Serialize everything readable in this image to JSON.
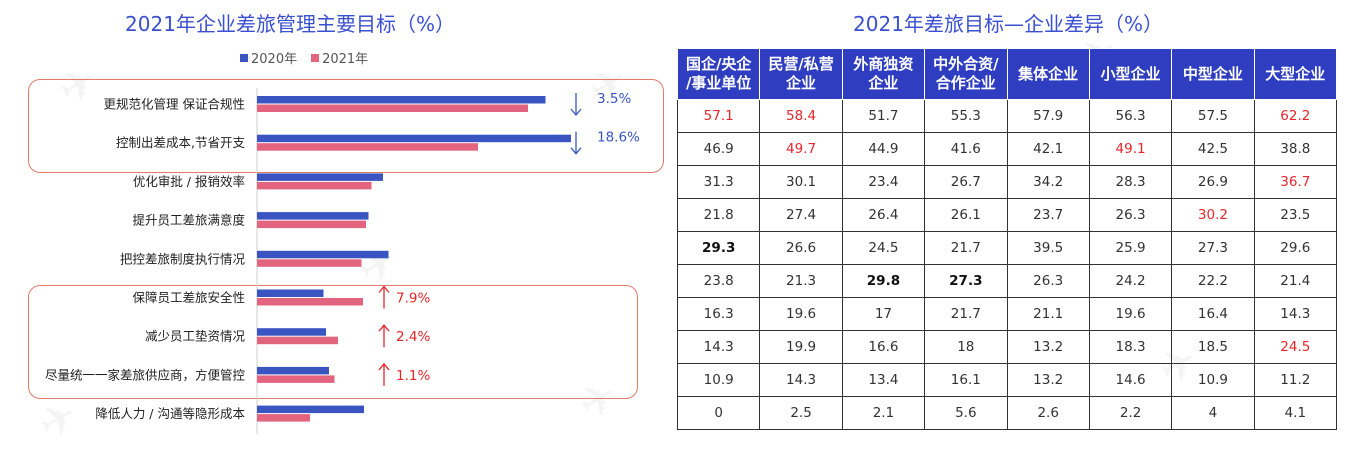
{
  "left": {
    "title": "2021年企业差旅管理主要目标（%）",
    "legend": [
      {
        "name": "2020年",
        "color": "#3a55c2"
      },
      {
        "name": "2021年",
        "color": "#e3647e"
      }
    ]
  },
  "chart_data": {
    "type": "bar",
    "orientation": "horizontal",
    "categories": [
      "更规范化管理 保证合规性",
      "控制出差成本,节省开支",
      "优化审批 / 报销效率",
      "提升员工差旅满意度",
      "把控差旅制度执行情况",
      "保障员工差旅安全性",
      "减少员工垫资情况",
      "尽量统一一家差旅供应商，方便管控",
      "降低人力 / 沟通等隐形成本"
    ],
    "series": [
      {
        "name": "2020年",
        "values": [
          57.7,
          62.8,
          25.2,
          22.3,
          26.3,
          13.3,
          13.8,
          14.4,
          21.4
        ]
      },
      {
        "name": "2021年",
        "values": [
          54.2,
          44.2,
          22.9,
          21.8,
          20.9,
          21.2,
          16.2,
          15.5,
          10.6
        ]
      }
    ],
    "annotations": [
      {
        "category_index": 0,
        "direction": "down",
        "text": "3.5%",
        "color": "#3a55c2"
      },
      {
        "category_index": 1,
        "direction": "down",
        "text": "18.6%",
        "color": "#3a55c2"
      },
      {
        "category_index": 5,
        "direction": "up",
        "text": "7.9%",
        "color": "#e8262c"
      },
      {
        "category_index": 6,
        "direction": "up",
        "text": "2.4%",
        "color": "#e8262c"
      },
      {
        "category_index": 7,
        "direction": "up",
        "text": "1.1%",
        "color": "#e8262c"
      }
    ],
    "highlight_groups": [
      [
        0,
        1
      ],
      [
        5,
        6,
        7
      ]
    ]
  },
  "right": {
    "title": "2021年差旅目标—企业差异（%）",
    "headers": [
      "国企/央企\n/事业单位",
      "民营/私营\n企业",
      "外商独资\n企业",
      "中外合资/\n合作企业",
      "集体企业",
      "小型企业",
      "中型企业",
      "大型企业"
    ],
    "rows": [
      [
        "57.1",
        "58.4",
        "51.7",
        "55.3",
        "57.9",
        "56.3",
        "57.5",
        "62.2"
      ],
      [
        "46.9",
        "49.7",
        "44.9",
        "41.6",
        "42.1",
        "49.1",
        "42.5",
        "38.8"
      ],
      [
        "31.3",
        "30.1",
        "23.4",
        "26.7",
        "34.2",
        "28.3",
        "26.9",
        "36.7"
      ],
      [
        "21.8",
        "27.4",
        "26.4",
        "26.1",
        "23.7",
        "26.3",
        "30.2",
        "23.5"
      ],
      [
        "29.3",
        "26.6",
        "24.5",
        "21.7",
        "39.5",
        "25.9",
        "27.3",
        "29.6"
      ],
      [
        "23.8",
        "21.3",
        "29.8",
        "27.3",
        "26.3",
        "24.2",
        "22.2",
        "21.4"
      ],
      [
        "16.3",
        "19.6",
        "17",
        "21.7",
        "21.1",
        "19.6",
        "16.4",
        "14.3"
      ],
      [
        "14.3",
        "19.9",
        "16.6",
        "18",
        "13.2",
        "18.3",
        "18.5",
        "24.5"
      ],
      [
        "10.9",
        "14.3",
        "13.4",
        "16.1",
        "13.2",
        "14.6",
        "10.9",
        "11.2"
      ],
      [
        "0",
        "2.5",
        "2.1",
        "5.6",
        "2.6",
        "2.2",
        "4",
        "4.1"
      ]
    ],
    "red_cells": [
      [
        0,
        0
      ],
      [
        0,
        1
      ],
      [
        0,
        7
      ],
      [
        1,
        1
      ],
      [
        1,
        5
      ],
      [
        2,
        7
      ],
      [
        3,
        6
      ],
      [
        7,
        7
      ]
    ],
    "bold_cells": [
      [
        4,
        0
      ],
      [
        5,
        2
      ],
      [
        5,
        3
      ]
    ]
  }
}
